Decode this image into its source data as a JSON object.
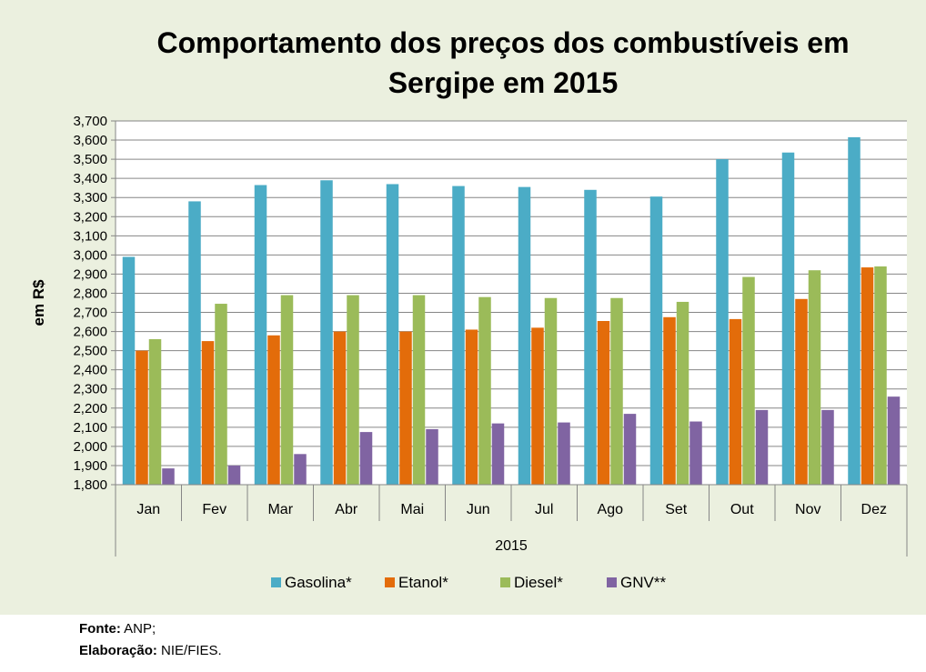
{
  "chart_data": {
    "type": "bar",
    "title": "Comportamento dos preços dos combustíveis em Sergipe em 2015",
    "title_lines": [
      "Comportamento dos preços dos combustíveis em",
      "Sergipe em 2015"
    ],
    "ylabel": "em R$",
    "xlabel": "",
    "group_label": "2015",
    "categories": [
      "Jan",
      "Fev",
      "Mar",
      "Abr",
      "Mai",
      "Jun",
      "Jul",
      "Ago",
      "Set",
      "Out",
      "Nov",
      "Dez"
    ],
    "ylim": [
      1.8,
      3.7
    ],
    "yticks": [
      1.8,
      1.9,
      2.0,
      2.1,
      2.2,
      2.3,
      2.4,
      2.5,
      2.6,
      2.7,
      2.8,
      2.9,
      3.0,
      3.1,
      3.2,
      3.3,
      3.4,
      3.5,
      3.6,
      3.7
    ],
    "ytick_labels": [
      "1,800",
      "1,900",
      "2,000",
      "2,100",
      "2,200",
      "2,300",
      "2,400",
      "2,500",
      "2,600",
      "2,700",
      "2,800",
      "2,900",
      "3,000",
      "3,100",
      "3,200",
      "3,300",
      "3,400",
      "3,500",
      "3,600",
      "3,700"
    ],
    "grid": true,
    "legend_position": "bottom",
    "series": [
      {
        "name": "Gasolina*",
        "color": "#4bacc6",
        "values": [
          2.99,
          3.28,
          3.365,
          3.39,
          3.37,
          3.36,
          3.355,
          3.34,
          3.305,
          3.5,
          3.535,
          3.615
        ]
      },
      {
        "name": "Etanol*",
        "color": "#e36c0a",
        "values": [
          2.5,
          2.55,
          2.58,
          2.6,
          2.6,
          2.61,
          2.62,
          2.655,
          2.675,
          2.665,
          2.77,
          2.935
        ]
      },
      {
        "name": "Diesel*",
        "color": "#9bbb59",
        "values": [
          2.56,
          2.745,
          2.79,
          2.79,
          2.79,
          2.78,
          2.775,
          2.775,
          2.755,
          2.885,
          2.92,
          2.94
        ]
      },
      {
        "name": "GNV**",
        "color": "#8064a2",
        "values": [
          1.885,
          1.9,
          1.96,
          2.075,
          2.09,
          2.12,
          2.125,
          2.17,
          2.13,
          2.19,
          2.19,
          2.26
        ]
      }
    ]
  },
  "source": {
    "fonte_label": "Fonte:",
    "fonte_value": " ANP;",
    "elaboracao_label": "Elaboração:",
    "elaboracao_value": " NIE/FIES."
  }
}
